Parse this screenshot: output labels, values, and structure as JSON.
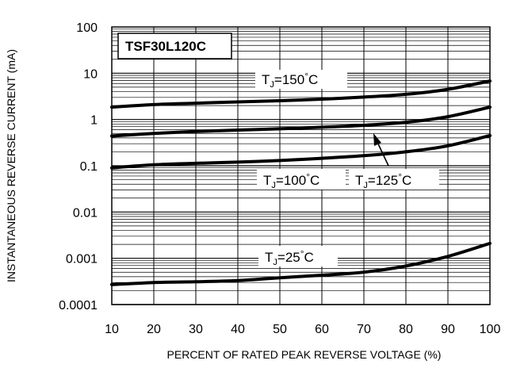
{
  "chart_data": {
    "type": "line",
    "title": "TSF30L120C",
    "xlabel": "PERCENT OF RATED PEAK REVERSE VOLTAGE (%)",
    "ylabel": "INSTANTANEOUS REVERSE CURRENT (mA)",
    "x_scale": "linear",
    "y_scale": "log",
    "xlim": [
      10,
      100
    ],
    "ylim": [
      0.0001,
      100
    ],
    "grid": true,
    "x_ticks": [
      "10",
      "20",
      "30",
      "40",
      "50",
      "60",
      "70",
      "80",
      "90",
      "100"
    ],
    "y_ticks": [
      "0.0001",
      "0.001",
      "0.01",
      "0.1",
      "1",
      "10",
      "100"
    ],
    "series_labels": {
      "t150": {
        "main": "T",
        "sub": "J",
        "rest": "=150",
        "deg": "°",
        "unit": "C"
      },
      "t125": {
        "main": "T",
        "sub": "J",
        "rest": "=125",
        "deg": "°",
        "unit": "C"
      },
      "t100": {
        "main": "T",
        "sub": "J",
        "rest": "=100",
        "deg": "°",
        "unit": "C"
      },
      "t25": {
        "main": "T",
        "sub": "J",
        "rest": "=25",
        "deg": "°",
        "unit": "C"
      }
    },
    "series": [
      {
        "key": "t150",
        "x": [
          10,
          20,
          30,
          40,
          50,
          60,
          70,
          80,
          90,
          100
        ],
        "y": [
          1.85,
          2.1,
          2.25,
          2.4,
          2.55,
          2.75,
          3.05,
          3.5,
          4.5,
          6.8
        ]
      },
      {
        "key": "t125",
        "x": [
          10,
          20,
          30,
          40,
          50,
          60,
          70,
          80,
          90,
          100
        ],
        "y": [
          0.44,
          0.5,
          0.55,
          0.59,
          0.63,
          0.68,
          0.75,
          0.87,
          1.15,
          1.85
        ]
      },
      {
        "key": "t100",
        "x": [
          10,
          20,
          30,
          40,
          50,
          60,
          70,
          80,
          90,
          100
        ],
        "y": [
          0.09,
          0.105,
          0.113,
          0.12,
          0.13,
          0.145,
          0.165,
          0.2,
          0.27,
          0.45
        ]
      },
      {
        "key": "t25",
        "x": [
          10,
          20,
          30,
          40,
          50,
          60,
          70,
          80,
          90,
          100
        ],
        "y": [
          0.00027,
          0.0003,
          0.00031,
          0.00033,
          0.00038,
          0.00043,
          0.0005,
          0.00068,
          0.0011,
          0.0021
        ]
      }
    ]
  }
}
